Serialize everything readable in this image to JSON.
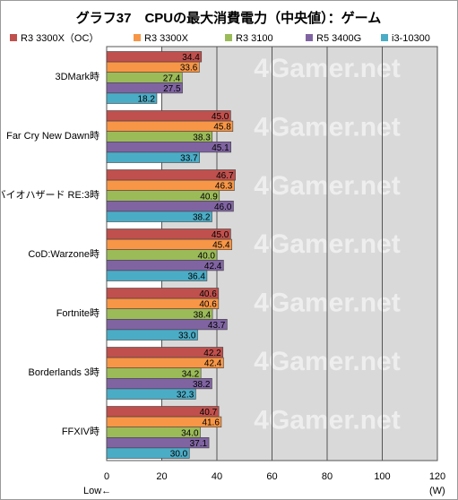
{
  "chart_data": {
    "type": "bar",
    "orientation": "horizontal",
    "title": "グラフ37　CPUの最大消費電力（中央値）：ゲーム",
    "categories": [
      "3DMark時",
      "Far Cry New Dawn時",
      "バイオハザード RE:3時",
      "CoD:Warzone時",
      "Fortnite時",
      "Borderlands 3時",
      "FFXIV時"
    ],
    "series": [
      {
        "name": "R3 3300X（OC）",
        "color": "#c0504d",
        "values": [
          34.4,
          45.0,
          46.7,
          45.0,
          40.6,
          42.2,
          40.7
        ]
      },
      {
        "name": "R3 3300X",
        "color": "#f79646",
        "values": [
          33.6,
          45.8,
          46.3,
          45.4,
          40.6,
          42.4,
          41.6
        ]
      },
      {
        "name": "R3 3100",
        "color": "#9bbb59",
        "values": [
          27.4,
          38.3,
          40.9,
          40.0,
          38.4,
          34.2,
          34.0
        ]
      },
      {
        "name": "R5 3400G",
        "color": "#8064a2",
        "values": [
          27.5,
          45.1,
          46.0,
          42.4,
          43.7,
          38.2,
          37.1
        ]
      },
      {
        "name": "i3-10300",
        "color": "#4bacc6",
        "values": [
          18.2,
          33.7,
          38.2,
          36.4,
          33.0,
          32.3,
          30.0
        ]
      }
    ],
    "xlim": [
      0,
      120
    ],
    "xticks": [
      0,
      20,
      40,
      60,
      80,
      100,
      120
    ],
    "xlabel_left": "Low←",
    "xlabel_right": "(W)",
    "legend_position": "top",
    "grid": true,
    "watermark": "4Gamer.net"
  }
}
